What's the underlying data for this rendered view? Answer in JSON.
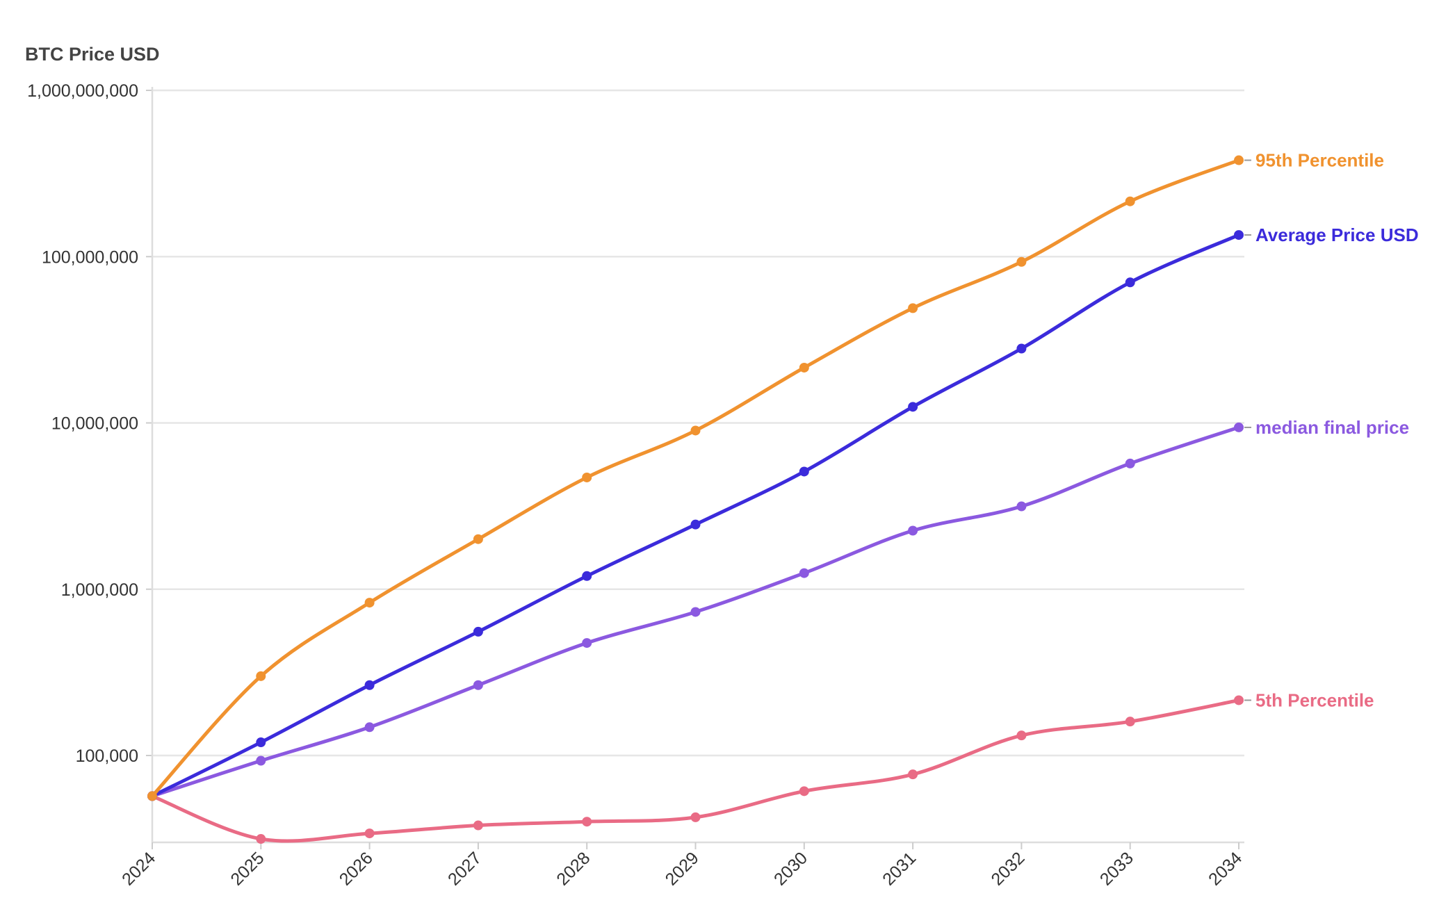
{
  "chart_data": {
    "type": "line",
    "title": "",
    "ylabel": "BTC Price USD",
    "xlabel": "",
    "y_scale": "log",
    "ylim": [
      30000,
      1000000000
    ],
    "y_ticks": [
      100000,
      1000000,
      10000000,
      100000000,
      1000000000
    ],
    "y_tick_labels": [
      "100,000",
      "1,000,000",
      "10,000,000",
      "100,000,000",
      "1,000,000,000"
    ],
    "x": [
      "2024",
      "2025",
      "2026",
      "2027",
      "2028",
      "2029",
      "2030",
      "2031",
      "2032",
      "2033",
      "2034"
    ],
    "grid": "horizontal",
    "legend": "direct labels at line ends (right)",
    "series": [
      {
        "name": "95th Percentile",
        "color": "#f0922f",
        "values": [
          57000,
          300000,
          830000,
          2000000,
          4700000,
          9000000,
          21500000,
          49000000,
          93000000,
          215000000,
          380000000
        ]
      },
      {
        "name": "Average Price USD",
        "color": "#3b2bdb",
        "values": [
          57000,
          120000,
          265000,
          555000,
          1200000,
          2450000,
          5100000,
          12500000,
          28000000,
          70000000,
          135000000
        ]
      },
      {
        "name": "median final price",
        "color": "#8b59e0",
        "values": [
          57000,
          93000,
          148000,
          265000,
          475000,
          730000,
          1250000,
          2250000,
          3150000,
          5700000,
          9400000
        ]
      },
      {
        "name": "5th Percentile",
        "color": "#e96b85",
        "values": [
          57000,
          31500,
          34000,
          38000,
          40000,
          42500,
          61000,
          77000,
          132000,
          160000,
          215000
        ]
      }
    ]
  }
}
